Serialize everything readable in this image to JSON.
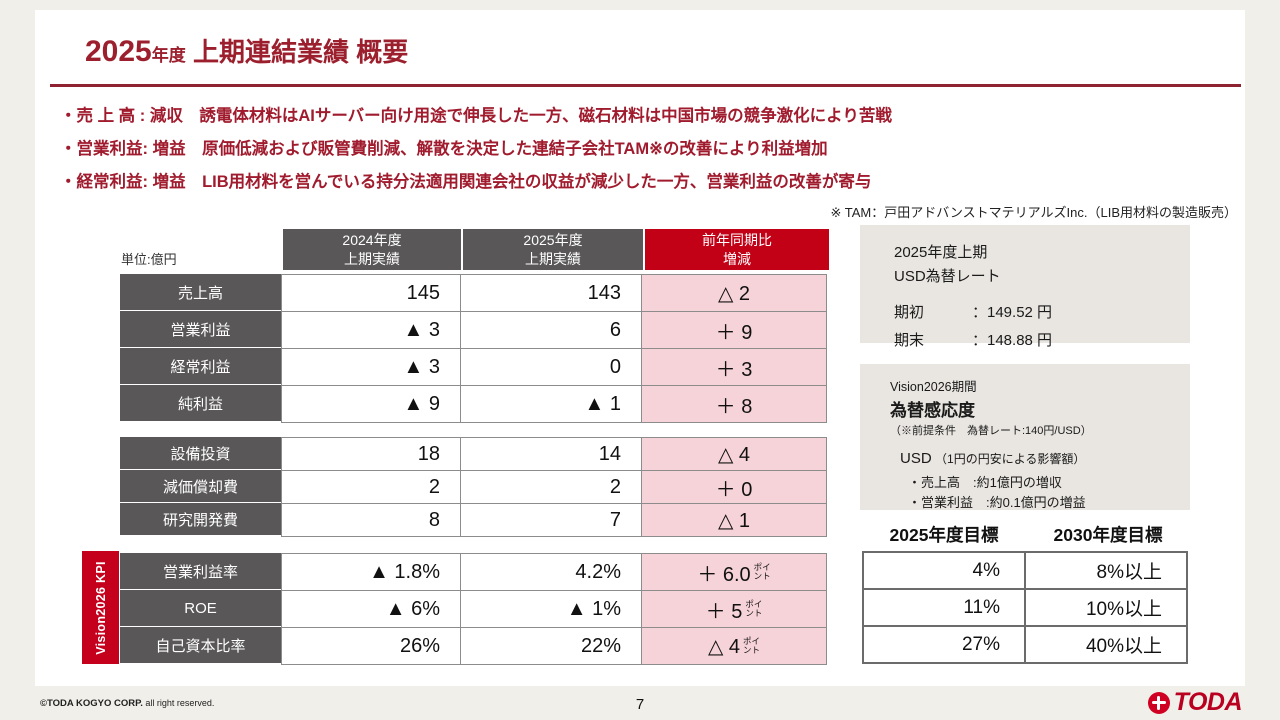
{
  "slide": {
    "title": {
      "year": "2025",
      "nendo": "年度",
      "rest": " 上期連結業績 概要"
    },
    "bullets": [
      "・売 上 高 : 減収　誘電体材料はAIサーバー向け用途で伸長した一方、磁石材料は中国市場の競争激化により苦戦",
      "・営業利益: 増益　原価低減および販管費削減、解散を決定した連結子会社TAM※の改善により利益増加",
      "・経常利益: 増益　LIB用材料を営んでいる持分法適用関連会社の収益が減少した一方、営業利益の改善が寄与"
    ],
    "note": "※ TAM：戸田アドバンストマテリアルズInc.（LIB用材料の製造販売）"
  },
  "main_table": {
    "unit_label": "単位:億円",
    "kpi_side_label": "Vision2026 KPI",
    "headers": {
      "col1": {
        "line1": "2024年度",
        "line2": "上期実績"
      },
      "col2": {
        "line1": "2025年度",
        "line2": "上期実績"
      },
      "col3": {
        "line1": "前年同期比",
        "line2": "増減"
      }
    },
    "groups": [
      {
        "rows": [
          {
            "label": "売上高",
            "v1": "145",
            "v2": "143",
            "d": "△ 2"
          },
          {
            "label": "営業利益",
            "v1": "▲ 3",
            "v2": "6",
            "d": "＋ 9"
          },
          {
            "label": "経常利益",
            "v1": "▲ 3",
            "v2": "0",
            "d": "＋ 3"
          },
          {
            "label": "純利益",
            "v1": "▲ 9",
            "v2": "▲ 1",
            "d": "＋ 8"
          }
        ]
      },
      {
        "rows": [
          {
            "label": "設備投資",
            "v1": "18",
            "v2": "14",
            "d": "△ 4"
          },
          {
            "label": "減価償却費",
            "v1": "2",
            "v2": "2",
            "d": "＋ 0"
          },
          {
            "label": "研究開発費",
            "v1": "8",
            "v2": "7",
            "d": "△ 1"
          }
        ]
      },
      {
        "rows": [
          {
            "label": "営業利益率",
            "v1": "▲ 1.8%",
            "v2": "4.2%",
            "d": "＋ 6.0",
            "suffix": "ポイント"
          },
          {
            "label": "ROE",
            "v1": "▲ 6%",
            "v2": "▲ 1%",
            "d": "＋ 5",
            "suffix": "ポイント"
          },
          {
            "label": "自己資本比率",
            "v1": "26%",
            "v2": "22%",
            "d": "△ 4",
            "suffix": "ポイント"
          }
        ]
      }
    ]
  },
  "usd_rate_box": {
    "title_line1": "2025年度上期",
    "title_line2": "USD為替レート",
    "rows": [
      {
        "label": "期初",
        "value": "：149.52 円"
      },
      {
        "label": "期末",
        "value": "：148.88 円"
      }
    ]
  },
  "sensitivity_box": {
    "period": "Vision2026期間",
    "title": "為替感応度",
    "assumption": "（※前提条件　為替レート:140円/USD）",
    "usd_label": "USD",
    "usd_note": "（1円の円安による影響額）",
    "items": [
      "・売上高　:約1億円の増収",
      "・営業利益　:約0.1億円の増益"
    ]
  },
  "targets_table": {
    "headers": [
      "2025年度目標",
      "2030年度目標"
    ],
    "rows": [
      [
        "4%",
        "8%以上"
      ],
      [
        "11%",
        "10%以上"
      ],
      [
        "27%",
        "40%以上"
      ]
    ]
  },
  "footer": {
    "copyright_bold": "©TODA KOGYO CORP.",
    "copyright_rest": " all right reserved.",
    "page": "7",
    "logo_text": "TODA"
  }
}
